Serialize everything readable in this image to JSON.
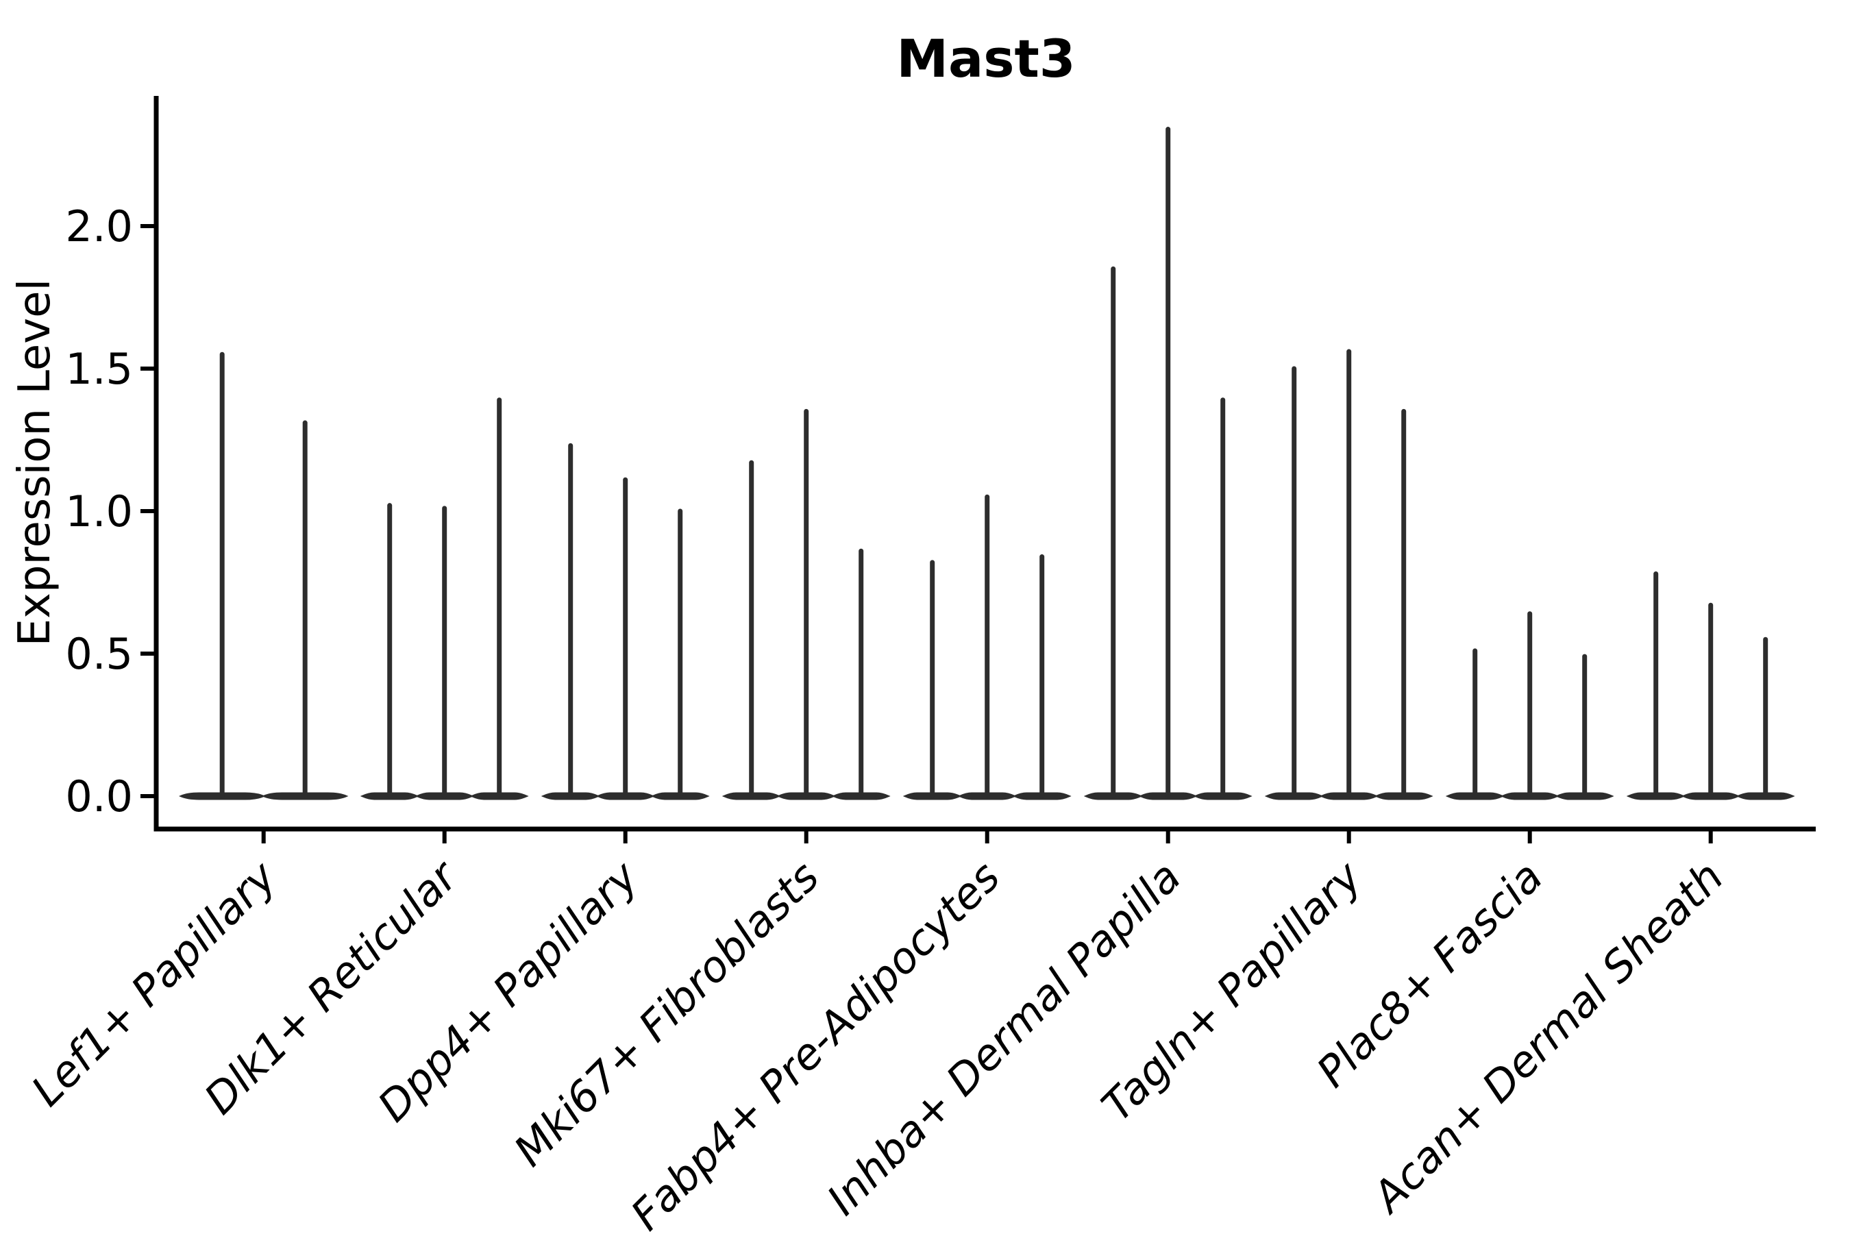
{
  "title": "Mast3",
  "colors": {
    "background": "#ffffff",
    "axis": "#000000",
    "text": "#000000",
    "violin": "#2d2d2d"
  },
  "chart_data": {
    "type": "violin",
    "title": "Mast3",
    "xlabel": "",
    "ylabel": "Expression Level",
    "ylim": [
      0,
      2.46
    ],
    "yticks": [
      0.0,
      0.5,
      1.0,
      1.5,
      2.0
    ],
    "grid": false,
    "legend": "none",
    "description": "Single-cell expression violin plot. Each category shows 2-3 thin violins: a flat density body at expression 0 with a narrow spike rising to the maximum expression value.",
    "categories": [
      "Lef1+ Papillary",
      "Dlk1+ Reticular",
      "Dpp4+ Papillary",
      "Mki67+ Fibroblasts",
      "Fabp4+ Pre-Adipocytes",
      "Inhba+ Dermal Papilla",
      "Tagln+ Papillary",
      "Plac8+ Fascia",
      "Acan+ Dermal Sheath"
    ],
    "series": [
      {
        "category": "Lef1+ Papillary",
        "violin_spike_maxima": [
          1.55,
          1.31
        ],
        "baseline_value": 0.0
      },
      {
        "category": "Dlk1+ Reticular",
        "violin_spike_maxima": [
          1.02,
          1.01,
          1.39
        ],
        "baseline_value": 0.0
      },
      {
        "category": "Dpp4+ Papillary",
        "violin_spike_maxima": [
          1.23,
          1.11,
          1.0
        ],
        "baseline_value": 0.0
      },
      {
        "category": "Mki67+ Fibroblasts",
        "violin_spike_maxima": [
          1.17,
          1.35,
          0.86
        ],
        "baseline_value": 0.0
      },
      {
        "category": "Fabp4+ Pre-Adipocytes",
        "violin_spike_maxima": [
          0.82,
          1.05,
          0.84
        ],
        "baseline_value": 0.0
      },
      {
        "category": "Inhba+ Dermal Papilla",
        "violin_spike_maxima": [
          1.85,
          2.34,
          1.39
        ],
        "baseline_value": 0.0
      },
      {
        "category": "Tagln+ Papillary",
        "violin_spike_maxima": [
          1.5,
          1.56,
          1.35
        ],
        "baseline_value": 0.0
      },
      {
        "category": "Plac8+ Fascia",
        "violin_spike_maxima": [
          0.51,
          0.64,
          0.49
        ],
        "baseline_value": 0.0
      },
      {
        "category": "Acan+ Dermal Sheath",
        "violin_spike_maxima": [
          0.78,
          0.67,
          0.55
        ],
        "baseline_value": 0.0
      }
    ]
  }
}
